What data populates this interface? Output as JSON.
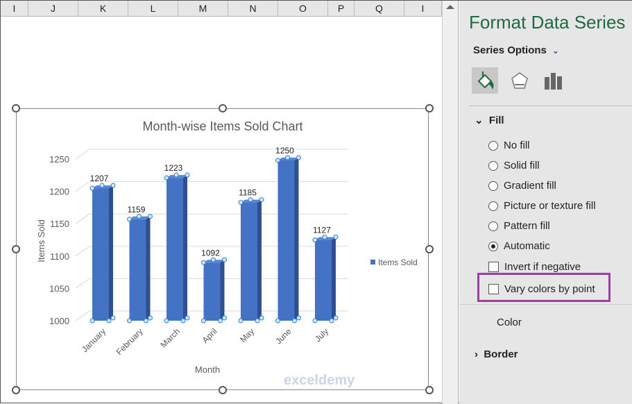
{
  "columns": [
    "I",
    "J",
    "K",
    "L",
    "M",
    "N",
    "O",
    "P",
    "Q",
    "I"
  ],
  "panel": {
    "title": "Format Data Series",
    "series_options": "Series Options",
    "fill_section": "Fill",
    "fill_options": [
      {
        "label": "No fill",
        "selected": false
      },
      {
        "label": "Solid fill",
        "selected": false
      },
      {
        "label": "Gradient fill",
        "selected": false
      },
      {
        "label": "Picture or texture fill",
        "selected": false
      },
      {
        "label": "Pattern fill",
        "selected": false
      },
      {
        "label": "Automatic",
        "selected": true
      }
    ],
    "invert_if_negative": "Invert if negative",
    "vary_colors": "Vary colors by point",
    "color_label": "Color",
    "border_section": "Border",
    "tabs": [
      "fill-line-icon",
      "effects-icon",
      "series-options-icon"
    ]
  },
  "chart_data": {
    "type": "bar",
    "title": "Month-wise Items Sold Chart",
    "xlabel": "Month",
    "ylabel": "Items Sold",
    "categories": [
      "January",
      "February",
      "March",
      "April",
      "May",
      "June",
      "July"
    ],
    "series": [
      {
        "name": "Items Sold",
        "values": [
          1207,
          1159,
          1223,
          1092,
          1185,
          1250,
          1127
        ]
      }
    ],
    "ylim": [
      1000,
      1250
    ],
    "yticks": [
      1000,
      1050,
      1100,
      1150,
      1200,
      1250
    ],
    "grid": true,
    "legend": "right",
    "data_labels": true,
    "color": "#4472c4"
  },
  "watermark": "exceldemy"
}
